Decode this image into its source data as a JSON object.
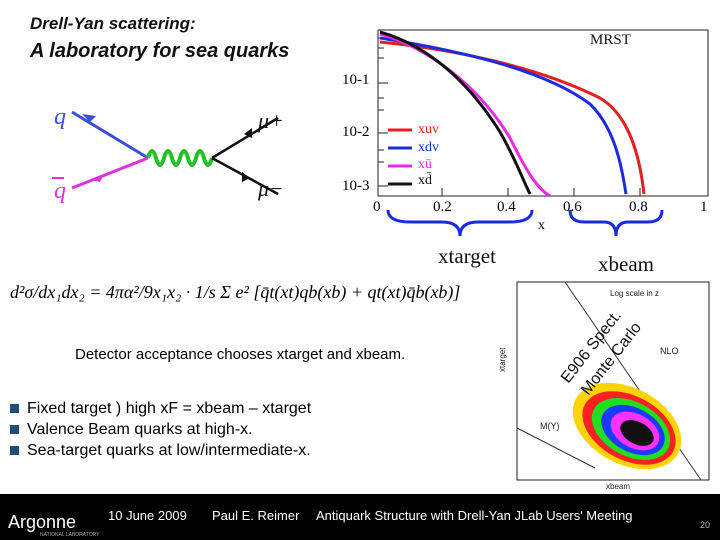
{
  "slide": {
    "title_line1": "Drell-Yan scattering:",
    "title_line2": "A laboratory for sea quarks",
    "slide_number": "20"
  },
  "feynman": {
    "q_top": "q",
    "q_bottom": "q",
    "mu_plus": "μ+",
    "mu_minus": "μ−"
  },
  "mrst_plot": {
    "label": "MRST",
    "y_ticks": [
      "10-1",
      "10-2",
      "10-3"
    ],
    "x_ticks": [
      "0",
      "0.2",
      "0.4",
      "0.6",
      "0.8",
      "1"
    ],
    "x_label": "x",
    "legend": [
      {
        "name": "xuv",
        "color": "#e32020"
      },
      {
        "name": "xdv",
        "color": "#1a2be0"
      },
      {
        "name": "xū",
        "color": "#e62ae6"
      },
      {
        "name": "xd̄",
        "color": "#111111"
      }
    ]
  },
  "brace_labels": {
    "target": "xtarget",
    "beam": "xbeam"
  },
  "formula": {
    "text": "d²σ/dx₁dx₂ = 4πα²/9x₁x₂ · 1/s Σ e² [q̄t(xt)qb(xb) + qt(xt)q̄b(xb)]"
  },
  "detector": {
    "text": "Detector acceptance chooses xtarget and xbeam."
  },
  "acceptance_plot": {
    "e906": "E906 Spect.",
    "monte": "Monte Carlo",
    "log_label": "Log scale in z",
    "y_label": "xtarget",
    "x_label": "xbeam",
    "annotation_right": "NLO",
    "annotation_left": "M(Υ)"
  },
  "bullets": [
    "Fixed target ) high xF = xbeam – xtarget",
    "Valence Beam quarks at high-x.",
    "Sea-target quarks at low/intermediate-x."
  ],
  "footer": {
    "logo": "Argonne",
    "logo_sub": "NATIONAL LABORATORY",
    "date": "10 June 2009",
    "author": "Paul E. Reimer",
    "talk": "Antiquark Structure with Drell-Yan JLab Users' Meeting"
  }
}
